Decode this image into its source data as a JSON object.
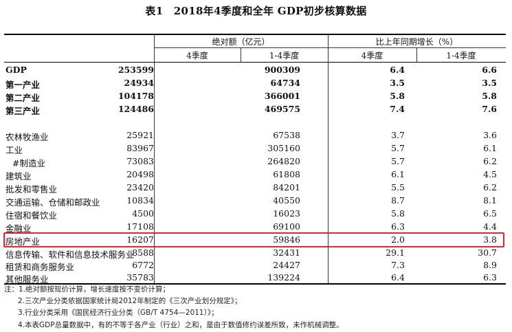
{
  "title": "表1　2018年4季度和全年 GDP初步核算数据",
  "header": {
    "group_absolute": "绝对额（亿元）",
    "group_growth": "比上年同期增长（%）",
    "sub": [
      "4季度",
      "1-4季度",
      "4季度",
      "1-4季度"
    ]
  },
  "rows": [
    {
      "name": "GDP",
      "v1": "253599",
      "v2": "900309",
      "v3": "6.4",
      "v4": "6.6"
    },
    {
      "name": "第一产业",
      "v1": "24934",
      "v2": "64734",
      "v3": "3.5",
      "v4": "3.5"
    },
    {
      "name": "第二产业",
      "v1": "104178",
      "v2": "366001",
      "v3": "5.8",
      "v4": "5.8"
    },
    {
      "name": "第三产业",
      "v1": "124486",
      "v2": "469575",
      "v3": "7.4",
      "v4": "7.6"
    },
    {
      "name": "农林牧渔业",
      "v1": "25921",
      "v2": "67538",
      "v3": "3.7",
      "v4": "3.6"
    },
    {
      "name": "工业",
      "v1": "83967",
      "v2": "305160",
      "v3": "5.7",
      "v4": "6.1"
    },
    {
      "name": "#制造业",
      "v1": "73083",
      "v2": "264820",
      "v3": "5.7",
      "v4": "6.2"
    },
    {
      "name": "建筑业",
      "v1": "20498",
      "v2": "61808",
      "v3": "6.1",
      "v4": "4.5"
    },
    {
      "name": "批发和零售业",
      "v1": "23420",
      "v2": "84201",
      "v3": "5.5",
      "v4": "6.2"
    },
    {
      "name": "交通运输、仓储和邮政业",
      "v1": "10834",
      "v2": "40550",
      "v3": "8.7",
      "v4": "8.1"
    },
    {
      "name": "住宿和餐饮业",
      "v1": "4500",
      "v2": "16023",
      "v3": "5.8",
      "v4": "6.5"
    },
    {
      "name": "金融业",
      "v1": "17108",
      "v2": "69100",
      "v3": "6.3",
      "v4": "4.4"
    },
    {
      "name": "房地产业",
      "v1": "16207",
      "v2": "59846",
      "v3": "2.0",
      "v4": "3.8"
    },
    {
      "name": "信息传输、软件和信息技术服务业",
      "v1": "8588",
      "v2": "32431",
      "v3": "29.1",
      "v4": "30.7"
    },
    {
      "name": "租赁和商务服务业",
      "v1": "6772",
      "v2": "24427",
      "v3": "7.3",
      "v4": "8.9"
    },
    {
      "name": "其他服务业",
      "v1": "35783",
      "v2": "139224",
      "v3": "6.4",
      "v4": "6.3"
    }
  ],
  "notes": [
    "注：1.绝对额按现价计算，增长速度按不变价计算；",
    "2.三次产业分类依据国家统计局2012年制定的《三次产业划分规定》；",
    "3.行业分类采用《国民经济行业分类（GB/T 4754—2011）》；",
    "4.本表GDP总量数据中，有的不等于各产业（行业）之和，是由于数值修约误差所致，未作机械调整。"
  ],
  "highlight_color": "#e0262a"
}
